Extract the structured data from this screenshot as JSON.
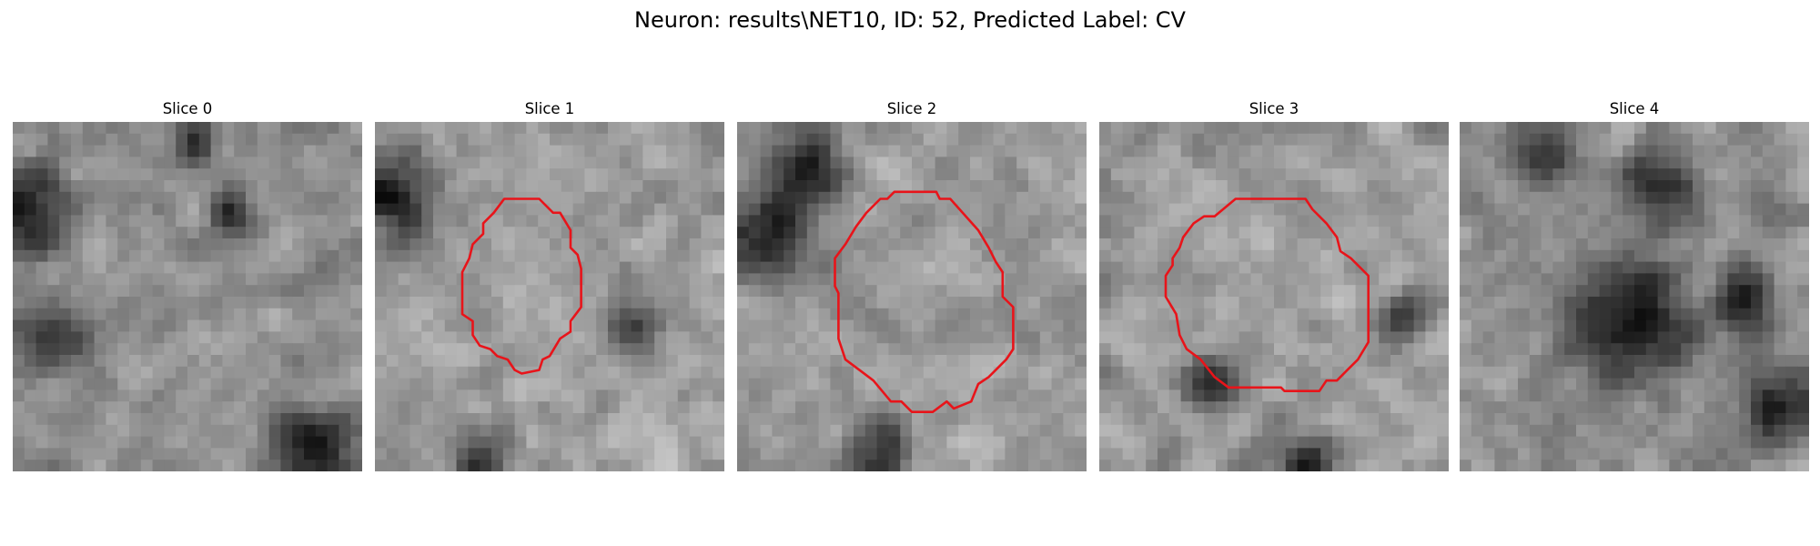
{
  "figure": {
    "title": "Neuron: results\\NET10, ID: 52, Predicted Label: CV"
  },
  "panels": [
    {
      "title": "Slice 0",
      "seed": 11,
      "brightness": 0.56,
      "dark_spots": [
        [
          0.03,
          0.25,
          0.18
        ],
        [
          0.1,
          0.6,
          0.15
        ],
        [
          0.85,
          0.92,
          0.17
        ],
        [
          0.5,
          0.04,
          0.08
        ],
        [
          0.62,
          0.25,
          0.1
        ]
      ],
      "contour": false
    },
    {
      "title": "Slice 1",
      "seed": 23,
      "brightness": 0.62,
      "dark_spots": [
        [
          0.05,
          0.2,
          0.2
        ],
        [
          0.3,
          0.95,
          0.12
        ],
        [
          0.72,
          0.58,
          0.1
        ]
      ],
      "contour": true
    },
    {
      "title": "Slice 2",
      "seed": 37,
      "brightness": 0.6,
      "dark_spots": [
        [
          0.08,
          0.3,
          0.22
        ],
        [
          0.2,
          0.1,
          0.14
        ],
        [
          0.4,
          0.92,
          0.12
        ]
      ],
      "contour": true
    },
    {
      "title": "Slice 3",
      "seed": 49,
      "brightness": 0.6,
      "dark_spots": [
        [
          0.58,
          0.95,
          0.12
        ],
        [
          0.85,
          0.55,
          0.1
        ],
        [
          0.3,
          0.72,
          0.1
        ]
      ],
      "contour": true
    },
    {
      "title": "Slice 4",
      "seed": 61,
      "brightness": 0.55,
      "dark_spots": [
        [
          0.22,
          0.08,
          0.12
        ],
        [
          0.55,
          0.18,
          0.16
        ],
        [
          0.48,
          0.55,
          0.26
        ],
        [
          0.9,
          0.8,
          0.16
        ],
        [
          0.8,
          0.5,
          0.12
        ]
      ],
      "contour": false
    }
  ],
  "colors": {
    "contour": "#e8141a",
    "background": "#ffffff"
  }
}
